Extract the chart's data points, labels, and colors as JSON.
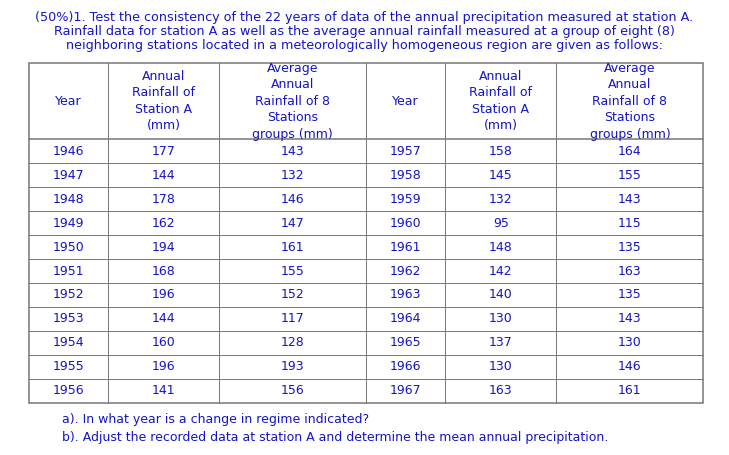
{
  "intro_line1": "(50%)1. Test the consistency of the 22 years of data of the annual precipitation measured at station A.",
  "intro_line2": "Rainfall data for station A as well as the average annual rainfall measured at a group of eight (8)",
  "intro_line3": "neighboring stations located in a meteorologically homogeneous region are given as follows:",
  "header": [
    "Year",
    "Annual\nRainfall of\nStation A\n(mm)",
    "Average\nAnnual\nRainfall of 8\nStations\ngroups (mm)",
    "Year",
    "Annual\nRainfall of\nStation A\n(mm)",
    "Average\nAnnual\nRainfall of 8\nStations\ngroups (mm)"
  ],
  "data_left": [
    [
      "1946",
      "177",
      "143"
    ],
    [
      "1947",
      "144",
      "132"
    ],
    [
      "1948",
      "178",
      "146"
    ],
    [
      "1949",
      "162",
      "147"
    ],
    [
      "1950",
      "194",
      "161"
    ],
    [
      "1951",
      "168",
      "155"
    ],
    [
      "1952",
      "196",
      "152"
    ],
    [
      "1953",
      "144",
      "117"
    ],
    [
      "1954",
      "160",
      "128"
    ],
    [
      "1955",
      "196",
      "193"
    ],
    [
      "1956",
      "141",
      "156"
    ]
  ],
  "data_right": [
    [
      "1957",
      "158",
      "164"
    ],
    [
      "1958",
      "145",
      "155"
    ],
    [
      "1959",
      "132",
      "143"
    ],
    [
      "1960",
      "95",
      "115"
    ],
    [
      "1961",
      "148",
      "135"
    ],
    [
      "1962",
      "142",
      "163"
    ],
    [
      "1963",
      "140",
      "135"
    ],
    [
      "1964",
      "130",
      "143"
    ],
    [
      "1965",
      "137",
      "130"
    ],
    [
      "1966",
      "130",
      "146"
    ],
    [
      "1967",
      "163",
      "161"
    ]
  ],
  "footer_a": "a). In what year is a change in regime indicated?",
  "footer_b": "b). Adjust the recorded data at station A and determine the mean annual precipitation.",
  "text_color": "#1414c8",
  "line_color": "#777777",
  "bg_color": "#ffffff",
  "font_size": 9.0,
  "header_font_size": 9.0,
  "intro_font_size": 9.2
}
